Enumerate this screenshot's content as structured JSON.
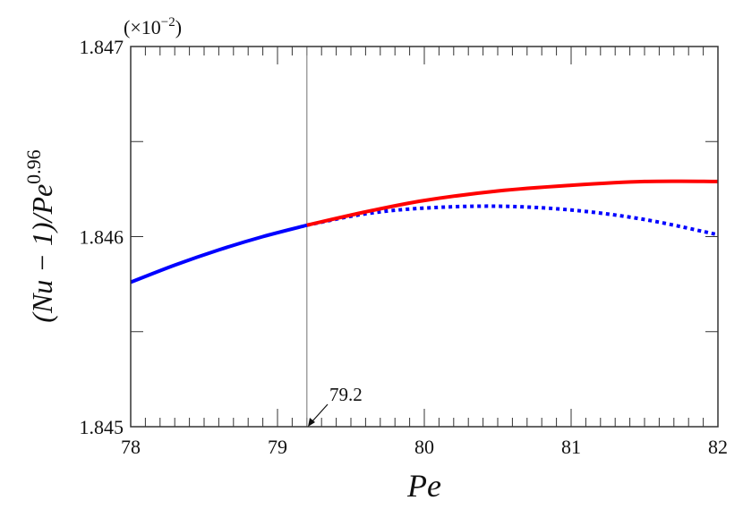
{
  "chart_data": {
    "type": "line",
    "xlabel": "Pe",
    "ylabel": "(Nu − 1)/Pe^0.96",
    "ylabel_parts": {
      "base": "(Nu − 1)/Pe",
      "exponent": "0.96"
    },
    "y_multiplier": {
      "base": "(×10",
      "exponent": "−2",
      "close": ")"
    },
    "xlim": [
      78,
      82
    ],
    "ylim": [
      1.845,
      1.847
    ],
    "x_ticks": [
      "78",
      "79",
      "80",
      "81",
      "82"
    ],
    "y_ticks": [
      "1.845",
      "1.846",
      "1.847"
    ],
    "grid": false,
    "vline": {
      "x": 79.2,
      "color": "#888888"
    },
    "annotation": {
      "text": "79.2",
      "x": 79.2
    },
    "series": [
      {
        "style": "solid",
        "color": "#0000ff",
        "x": [
          78,
          78.3,
          78.6,
          78.9,
          79.2
        ],
        "y": [
          1.84576,
          1.84585,
          1.84593,
          1.846,
          1.84606
        ]
      },
      {
        "style": "solid",
        "color": "#ff0000",
        "x": [
          79.2,
          79.6,
          80,
          80.5,
          81,
          81.5,
          82
        ],
        "y": [
          1.84606,
          1.84613,
          1.84619,
          1.84624,
          1.84627,
          1.84629,
          1.84629
        ]
      },
      {
        "style": "dotted",
        "color": "#0000ff",
        "x": [
          79.2,
          79.6,
          80,
          80.5,
          81,
          81.5,
          82
        ],
        "y": [
          1.84606,
          1.84612,
          1.84615,
          1.84616,
          1.84614,
          1.84609,
          1.84601
        ]
      }
    ]
  }
}
